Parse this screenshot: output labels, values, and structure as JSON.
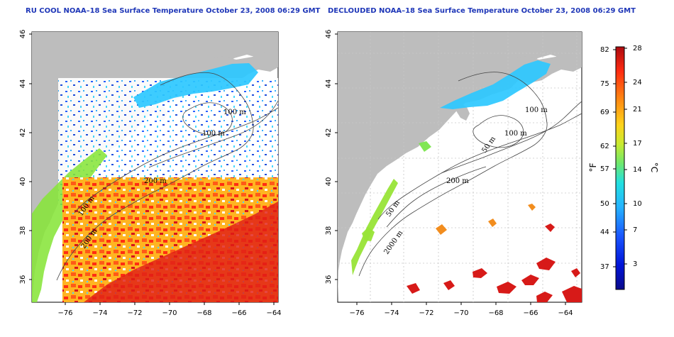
{
  "panels": [
    {
      "title": "RU COOL NOAA–18 Sea Surface Temperature October 23, 2008 06:29 GMT",
      "contour_labels": [
        "100 m",
        "100 m",
        "200 m",
        "100 m",
        "200 m"
      ]
    },
    {
      "title": "DECLOUDED NOAA–18 Sea Surface Temperature October 23, 2008 06:29 GMT",
      "contour_labels": [
        "100 m",
        "100 m",
        "50 m",
        "200 m",
        "50 m",
        "2000 m"
      ]
    }
  ],
  "axes": {
    "x_ticks": [
      "−76",
      "−74",
      "−72",
      "−70",
      "−68",
      "−66",
      "−64"
    ],
    "y_ticks": [
      "46",
      "44",
      "42",
      "40",
      "38",
      "36"
    ]
  },
  "colorbar": {
    "fahrenheit_ticks": [
      "82",
      "75",
      "69",
      "62",
      "57",
      "50",
      "44",
      "37"
    ],
    "celsius_ticks": [
      "28",
      "24",
      "21",
      "17",
      "14",
      "10",
      "7",
      "3"
    ],
    "fahrenheit_unit": "°F",
    "celsius_unit": "°C",
    "min_c": 0,
    "max_c": 28
  },
  "colors": {
    "land": "#bdbdbd",
    "title": "#1f37b8"
  }
}
